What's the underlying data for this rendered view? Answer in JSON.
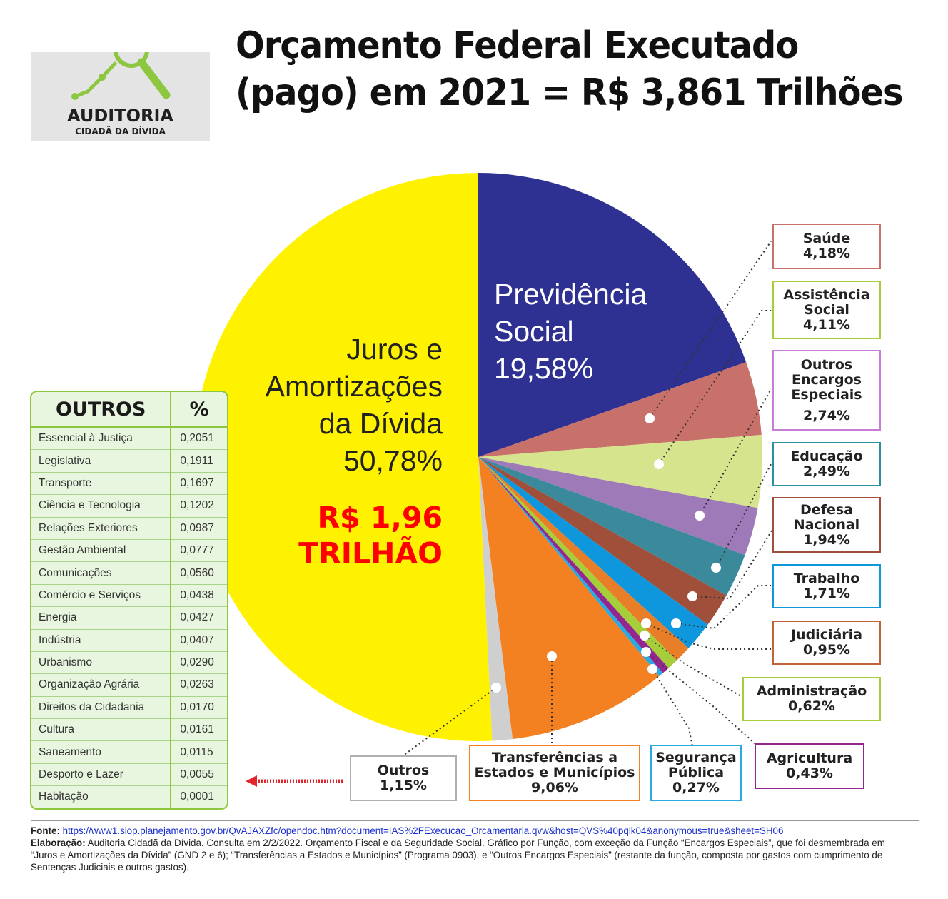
{
  "logo": {
    "line1": "AUDITORIA",
    "line2": "CIDADÃ DA DÍVIDA"
  },
  "title": {
    "line1": "Orçamento Federal Executado",
    "line2": "(pago) em 2021 = R$ 3,861 Trilhões"
  },
  "chart_data": {
    "type": "pie",
    "title": "Orçamento Federal Executado (pago) em 2021 = R$ 3,861 Trilhões",
    "slices": [
      {
        "label": "Previdência Social",
        "value": 19.58,
        "display": "19,58%",
        "color": "#2e3192"
      },
      {
        "label": "Saúde",
        "value": 4.18,
        "display": "4,18%",
        "color": "#c8706a"
      },
      {
        "label": "Assistência Social",
        "value": 4.11,
        "display": "4,11%",
        "color": "#d7e48e"
      },
      {
        "label": "Outros Encargos Especiais",
        "value": 2.74,
        "display": "2,74%",
        "color": "#9e7ab8"
      },
      {
        "label": "Educação",
        "value": 2.49,
        "display": "2,49%",
        "color": "#3a8a9b"
      },
      {
        "label": "Defesa Nacional",
        "value": 1.94,
        "display": "1,94%",
        "color": "#a0503a"
      },
      {
        "label": "Trabalho",
        "value": 1.71,
        "display": "1,71%",
        "color": "#0e97dc"
      },
      {
        "label": "Judiciária",
        "value": 0.95,
        "display": "0,95%",
        "color": "#e87e28"
      },
      {
        "label": "Administração",
        "value": 0.62,
        "display": "0,62%",
        "color": "#a6ce39"
      },
      {
        "label": "Agricultura",
        "value": 0.43,
        "display": "0,43%",
        "color": "#93278f"
      },
      {
        "label": "Segurança Pública",
        "value": 0.27,
        "display": "0,27%",
        "color": "#29abe2"
      },
      {
        "label": "Transferências a Estados e Municípios",
        "value": 9.06,
        "display": "9,06%",
        "color": "#f38121"
      },
      {
        "label": "Outros",
        "value": 1.15,
        "display": "1,15%",
        "color": "#cfcfcf"
      },
      {
        "label": "Juros e Amortizações da Dívida",
        "value": 50.78,
        "display": "50,78%",
        "color": "#fff200"
      }
    ]
  },
  "inside_labels": {
    "previdencia": {
      "l1": "Previdência",
      "l2": "Social",
      "l3": "19,58%"
    },
    "juros": {
      "l1": "Juros e",
      "l2": "Amortizações",
      "l3": "da Dívida",
      "l4": "50,78%",
      "money1": "R$ 1,96",
      "money2": "TRILHÃO"
    }
  },
  "callouts": {
    "saude": {
      "l1": "Saúde",
      "l2": "4,18%",
      "color": "#c8706a"
    },
    "assistencia": {
      "l1": "Assistência",
      "l2": "Social",
      "l3": "4,11%",
      "color": "#a6ce39"
    },
    "encargos": {
      "l1": "Outros",
      "l2": "Encargos",
      "l3": "Especiais",
      "l4": "2,74%",
      "color": "#c77dd6"
    },
    "educacao": {
      "l1": "Educação",
      "l2": "2,49%",
      "color": "#2a8f9e"
    },
    "defesa": {
      "l1": "Defesa",
      "l2": "Nacional",
      "l3": "1,94%",
      "color": "#a0503a"
    },
    "trabalho": {
      "l1": "Trabalho",
      "l2": "1,71%",
      "color": "#0e97dc"
    },
    "judiciaria": {
      "l1": "Judiciária",
      "l2": "0,95%",
      "color": "#c0623a"
    },
    "administracao": {
      "l1": "Administração",
      "l2": "0,62%",
      "color": "#a6ce39"
    },
    "agricultura": {
      "l1": "Agricultura",
      "l2": "0,43%",
      "color": "#93278f"
    },
    "seguranca": {
      "l1": "Segurança",
      "l2": "Pública",
      "l3": "0,27%",
      "color": "#29abe2"
    },
    "transferencias": {
      "l1": "Transferências a",
      "l2": "Estados e Municípios",
      "l3": "9,06%",
      "color": "#f38121"
    },
    "outros": {
      "l1": "Outros",
      "l2": "1,15%",
      "color": "#b0b0b0"
    }
  },
  "outros_table": {
    "header": {
      "name": "OUTROS",
      "pct": "%"
    },
    "rows": [
      {
        "name": "Essencial à Justiça",
        "pct": "0,2051"
      },
      {
        "name": "Legislativa",
        "pct": "0,1911"
      },
      {
        "name": "Transporte",
        "pct": "0,1697"
      },
      {
        "name": "Ciência e Tecnologia",
        "pct": "0,1202"
      },
      {
        "name": "Relações Exteriores",
        "pct": "0,0987"
      },
      {
        "name": "Gestão Ambiental",
        "pct": "0,0777"
      },
      {
        "name": "Comunicações",
        "pct": "0,0560"
      },
      {
        "name": "Comércio e Serviços",
        "pct": "0,0438"
      },
      {
        "name": "Energia",
        "pct": "0,0427"
      },
      {
        "name": "Indústria",
        "pct": "0,0407"
      },
      {
        "name": "Urbanismo",
        "pct": "0,0290"
      },
      {
        "name": "Organização Agrária",
        "pct": "0,0263"
      },
      {
        "name": "Direitos da Cidadania",
        "pct": "0,0170"
      },
      {
        "name": "Cultura",
        "pct": "0,0161"
      },
      {
        "name": "Saneamento",
        "pct": "0,0115"
      },
      {
        "name": "Desporto e Lazer",
        "pct": "0,0055"
      },
      {
        "name": "Habitação",
        "pct": "0,0001"
      }
    ]
  },
  "footer": {
    "fonte_label": "Fonte:",
    "fonte_url": "https://www1.siop.planejamento.gov.br/QvAJAXZfc/opendoc.htm?document=IAS%2FExecucao_Orcamentaria.qvw&host=QVS%40pqlk04&anonymous=true&sheet=SH06",
    "elab_label": "Elaboração:",
    "elab_text": "Auditoria Cidadã da Dívida. Consulta em 2/2/2022. Orçamento Fiscal e da Seguridade Social. Gráfico por Função, com exceção da Função “Encargos Especiais”, que foi desmembrada em “Juros e Amortizações da Dívida” (GND 2 e 6); “Transferências a Estados e Municípios” (Programa 0903), e “Outros Encargos Especiais” (restante da função, composta por gastos com cumprimento de Sentenças Judiciais e outros gastos)."
  }
}
